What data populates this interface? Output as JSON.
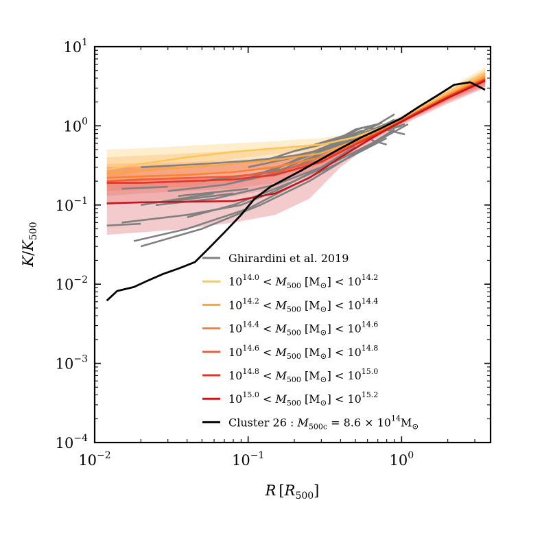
{
  "chart_data": {
    "type": "line",
    "xscale": "log",
    "yscale": "log",
    "xlim": [
      0.01,
      3.8
    ],
    "ylim": [
      0.0001,
      10
    ],
    "xlabel": {
      "main": "R",
      "bracket_open": "[",
      "sym": "R",
      "sub": "500",
      "bracket_close": "]"
    },
    "ylabel": {
      "main": "K",
      "slash": "/",
      "sym": "K",
      "sub": "500"
    },
    "xticks": [
      {
        "value": 0.01,
        "base": "10",
        "exp": "−2"
      },
      {
        "value": 0.1,
        "base": "10",
        "exp": "−1"
      },
      {
        "value": 1,
        "base": "10",
        "exp": "0"
      }
    ],
    "yticks": [
      {
        "value": 0.0001,
        "base": "10",
        "exp": "−4"
      },
      {
        "value": 0.001,
        "base": "10",
        "exp": "−3"
      },
      {
        "value": 0.01,
        "base": "10",
        "exp": "−2"
      },
      {
        "value": 0.1,
        "base": "10",
        "exp": "−1"
      },
      {
        "value": 1,
        "base": "10",
        "exp": "0"
      },
      {
        "value": 10,
        "base": "10",
        "exp": "1"
      }
    ],
    "legend_position": "lower-right",
    "observations": {
      "name": "Ghirardini et al. 2019",
      "color": "#808080",
      "lines": [
        {
          "x": [
            0.012,
            0.02
          ],
          "y": [
            0.055,
            0.058
          ]
        },
        {
          "x": [
            0.015,
            0.03
          ],
          "y": [
            0.16,
            0.17
          ]
        },
        {
          "x": [
            0.02,
            0.06
          ],
          "y": [
            0.1,
            0.14
          ]
        },
        {
          "x": [
            0.03,
            0.08
          ],
          "y": [
            0.11,
            0.14
          ]
        },
        {
          "x": [
            0.035,
            0.1
          ],
          "y": [
            0.13,
            0.16
          ]
        },
        {
          "x": [
            0.015,
            0.04,
            0.09,
            0.15,
            0.3,
            0.5
          ],
          "y": [
            0.06,
            0.075,
            0.1,
            0.15,
            0.3,
            0.55
          ]
        },
        {
          "x": [
            0.02,
            0.05,
            0.12,
            0.25,
            0.5,
            0.9
          ],
          "y": [
            0.03,
            0.05,
            0.1,
            0.2,
            0.45,
            0.9
          ]
        },
        {
          "x": [
            0.018,
            0.04,
            0.1,
            0.2,
            0.4,
            0.8
          ],
          "y": [
            0.035,
            0.05,
            0.09,
            0.18,
            0.35,
            0.7
          ]
        },
        {
          "x": [
            0.025,
            0.06,
            0.15,
            0.3,
            0.6,
            1.1
          ],
          "y": [
            0.1,
            0.12,
            0.18,
            0.3,
            0.55,
            1.05
          ]
        },
        {
          "x": [
            0.03,
            0.07,
            0.15,
            0.35,
            0.7
          ],
          "y": [
            0.15,
            0.18,
            0.25,
            0.45,
            0.85
          ]
        },
        {
          "x": [
            0.04,
            0.08,
            0.2,
            0.4,
            0.8
          ],
          "y": [
            0.07,
            0.1,
            0.2,
            0.38,
            0.75
          ]
        },
        {
          "x": [
            0.05,
            0.1,
            0.2,
            0.35,
            0.6,
            0.9
          ],
          "y": [
            0.2,
            0.24,
            0.3,
            0.5,
            0.8,
            1.2
          ]
        },
        {
          "x": [
            0.06,
            0.12,
            0.25,
            0.5,
            0.8
          ],
          "y": [
            0.21,
            0.25,
            0.42,
            0.7,
            1.0
          ]
        },
        {
          "x": [
            0.08,
            0.15,
            0.25,
            0.45,
            0.75
          ],
          "y": [
            0.19,
            0.28,
            0.45,
            0.72,
            1.1
          ]
        },
        {
          "x": [
            0.1,
            0.2,
            0.3,
            0.55,
            1.0
          ],
          "y": [
            0.3,
            0.4,
            0.5,
            0.8,
            1.25
          ]
        },
        {
          "x": [
            0.12,
            0.2,
            0.35,
            0.5,
            0.7,
            0.9
          ],
          "y": [
            0.35,
            0.48,
            0.62,
            0.9,
            1.05,
            1.4
          ]
        },
        {
          "x": [
            0.15,
            0.3,
            0.5,
            0.7,
            1.05
          ],
          "y": [
            0.26,
            0.45,
            0.7,
            0.95,
            0.78
          ]
        },
        {
          "x": [
            0.02,
            0.05,
            0.1,
            0.2,
            0.3
          ],
          "y": [
            0.3,
            0.33,
            0.36,
            0.42,
            0.5
          ]
        },
        {
          "x": [
            0.2,
            0.35,
            0.55,
            0.65,
            0.8
          ],
          "y": [
            0.48,
            0.62,
            0.87,
            0.65,
            0.58
          ]
        },
        {
          "x": [
            0.3,
            0.45,
            0.6,
            0.75,
            1.0
          ],
          "y": [
            0.6,
            0.72,
            0.78,
            0.85,
            1.0
          ]
        },
        {
          "x": [
            0.25,
            0.45,
            0.55,
            0.8,
            1.05
          ],
          "y": [
            0.55,
            0.78,
            0.95,
            0.9,
            1.05
          ]
        }
      ]
    },
    "mass_bins": [
      {
        "label_main": "10",
        "label_exp1": "14.0",
        "label_mid": " < ",
        "label_sym": "M",
        "label_sub": "500",
        "label_unit": " [M",
        "label_sun": "⊙",
        "label_close": "] < ",
        "label_base2": "10",
        "label_exp2": "14.2",
        "color": "#fdc659",
        "band_opacity": 0.3,
        "x": [
          0.012,
          0.02,
          0.04,
          0.08,
          0.15,
          0.3,
          0.5,
          0.8,
          1.2,
          2.0,
          3.5
        ],
        "y": [
          0.28,
          0.33,
          0.4,
          0.47,
          0.52,
          0.58,
          0.72,
          1.0,
          1.5,
          2.6,
          4.5
        ],
        "lo": [
          0.22,
          0.26,
          0.32,
          0.38,
          0.44,
          0.5,
          0.65,
          0.92,
          1.38,
          2.3,
          3.7
        ],
        "hi": [
          0.5,
          0.52,
          0.56,
          0.6,
          0.64,
          0.7,
          0.82,
          1.1,
          1.62,
          2.95,
          5.5
        ]
      },
      {
        "label_main": "10",
        "label_exp1": "14.2",
        "label_mid": " < ",
        "label_sym": "M",
        "label_sub": "500",
        "label_unit": " [M",
        "label_sun": "⊙",
        "label_close": "] < ",
        "label_base2": "10",
        "label_exp2": "14.4",
        "color": "#fca43e",
        "band_opacity": 0.25,
        "x": [
          0.012,
          0.02,
          0.04,
          0.08,
          0.15,
          0.3,
          0.5,
          0.8,
          1.2,
          2.0,
          3.5
        ],
        "y": [
          0.25,
          0.27,
          0.3,
          0.33,
          0.37,
          0.45,
          0.65,
          0.95,
          1.45,
          2.5,
          4.2
        ],
        "lo": [
          0.18,
          0.2,
          0.23,
          0.26,
          0.3,
          0.38,
          0.58,
          0.88,
          1.33,
          2.2,
          3.5
        ],
        "hi": [
          0.4,
          0.42,
          0.45,
          0.48,
          0.52,
          0.58,
          0.76,
          1.05,
          1.58,
          2.85,
          5.1
        ]
      },
      {
        "label_main": "10",
        "label_exp1": "14.4",
        "label_mid": " < ",
        "label_sym": "M",
        "label_sub": "500",
        "label_unit": " [M",
        "label_sun": "⊙",
        "label_close": "] < ",
        "label_base2": "10",
        "label_exp2": "14.6",
        "color": "#fb8132",
        "band_opacity": 0.2,
        "x": [
          0.012,
          0.02,
          0.04,
          0.08,
          0.15,
          0.3,
          0.5,
          0.8,
          1.2,
          2.0,
          3.5
        ],
        "y": [
          0.22,
          0.23,
          0.24,
          0.26,
          0.3,
          0.4,
          0.62,
          0.93,
          1.42,
          2.4,
          4.0
        ],
        "lo": [
          0.15,
          0.16,
          0.17,
          0.19,
          0.23,
          0.33,
          0.55,
          0.86,
          1.3,
          2.1,
          3.3
        ],
        "hi": [
          0.33,
          0.34,
          0.35,
          0.37,
          0.4,
          0.5,
          0.72,
          1.02,
          1.55,
          2.75,
          4.8
        ]
      },
      {
        "label_main": "10",
        "label_exp1": "14.6",
        "label_mid": " < ",
        "label_sym": "M",
        "label_sub": "500",
        "label_unit": " [M",
        "label_sun": "⊙",
        "label_close": "] < ",
        "label_base2": "10",
        "label_exp2": "14.8",
        "color": "#f65a32",
        "band_opacity": 0.18,
        "x": [
          0.012,
          0.02,
          0.04,
          0.08,
          0.15,
          0.3,
          0.5,
          0.8,
          1.2,
          2.0,
          3.5
        ],
        "y": [
          0.2,
          0.21,
          0.22,
          0.23,
          0.26,
          0.37,
          0.6,
          0.92,
          1.4,
          2.35,
          3.9
        ],
        "lo": [
          0.13,
          0.14,
          0.15,
          0.16,
          0.19,
          0.3,
          0.52,
          0.85,
          1.28,
          2.05,
          3.2
        ],
        "hi": [
          0.3,
          0.31,
          0.32,
          0.33,
          0.36,
          0.47,
          0.7,
          1.0,
          1.52,
          2.7,
          4.7
        ]
      },
      {
        "label_main": "10",
        "label_exp1": "14.8",
        "label_mid": " < ",
        "label_sym": "M",
        "label_sub": "500",
        "label_unit": " [M",
        "label_sun": "⊙",
        "label_close": "] < ",
        "label_base2": "10",
        "label_exp2": "15.0",
        "color": "#e83328",
        "band_opacity": 0.16,
        "x": [
          0.012,
          0.02,
          0.04,
          0.08,
          0.15,
          0.3,
          0.5,
          0.8,
          1.2,
          2.0,
          3.5
        ],
        "y": [
          0.19,
          0.19,
          0.2,
          0.21,
          0.24,
          0.35,
          0.58,
          0.9,
          1.38,
          2.3,
          3.8
        ],
        "lo": [
          0.1,
          0.11,
          0.12,
          0.13,
          0.16,
          0.27,
          0.5,
          0.83,
          1.26,
          2.0,
          3.1
        ],
        "hi": [
          0.3,
          0.3,
          0.31,
          0.32,
          0.35,
          0.45,
          0.68,
          0.98,
          1.5,
          2.65,
          4.6
        ]
      },
      {
        "label_main": "10",
        "label_exp1": "15.0",
        "label_mid": " < ",
        "label_sym": "M",
        "label_sub": "500",
        "label_unit": " [M",
        "label_sun": "⊙",
        "label_close": "] < ",
        "label_base2": "10",
        "label_exp2": "15.2",
        "color": "#c8141b",
        "band_opacity": 0.22,
        "x": [
          0.012,
          0.02,
          0.04,
          0.08,
          0.15,
          0.25,
          0.4,
          0.6,
          0.8,
          1.2,
          2.0,
          3.5
        ],
        "y": [
          0.105,
          0.108,
          0.11,
          0.112,
          0.14,
          0.22,
          0.4,
          0.65,
          0.9,
          1.35,
          2.25,
          3.7
        ],
        "lo": [
          0.042,
          0.045,
          0.05,
          0.06,
          0.075,
          0.12,
          0.3,
          0.55,
          0.8,
          1.2,
          1.9,
          3.0
        ],
        "hi": [
          0.2,
          0.21,
          0.22,
          0.23,
          0.25,
          0.33,
          0.5,
          0.74,
          1.0,
          1.5,
          2.7,
          4.5
        ]
      }
    ],
    "cluster": {
      "label_main": "Cluster 26 : ",
      "label_sym": "M",
      "label_sub": "500c",
      "label_eq": " = 8.6 × 10",
      "label_exp": "14",
      "label_unit": "M",
      "label_sun": "⊙",
      "color": "#000000",
      "x": [
        0.012,
        0.014,
        0.018,
        0.022,
        0.028,
        0.036,
        0.045,
        0.055,
        0.07,
        0.09,
        0.11,
        0.14,
        0.18,
        0.22,
        0.3,
        0.4,
        0.55,
        0.75,
        1.0,
        1.3,
        1.7,
        2.2,
        2.8,
        3.5
      ],
      "y": [
        0.0062,
        0.0082,
        0.0092,
        0.011,
        0.0135,
        0.016,
        0.019,
        0.028,
        0.045,
        0.075,
        0.12,
        0.17,
        0.22,
        0.27,
        0.38,
        0.52,
        0.72,
        0.95,
        1.25,
        1.75,
        2.4,
        3.3,
        3.55,
        2.85
      ]
    }
  }
}
